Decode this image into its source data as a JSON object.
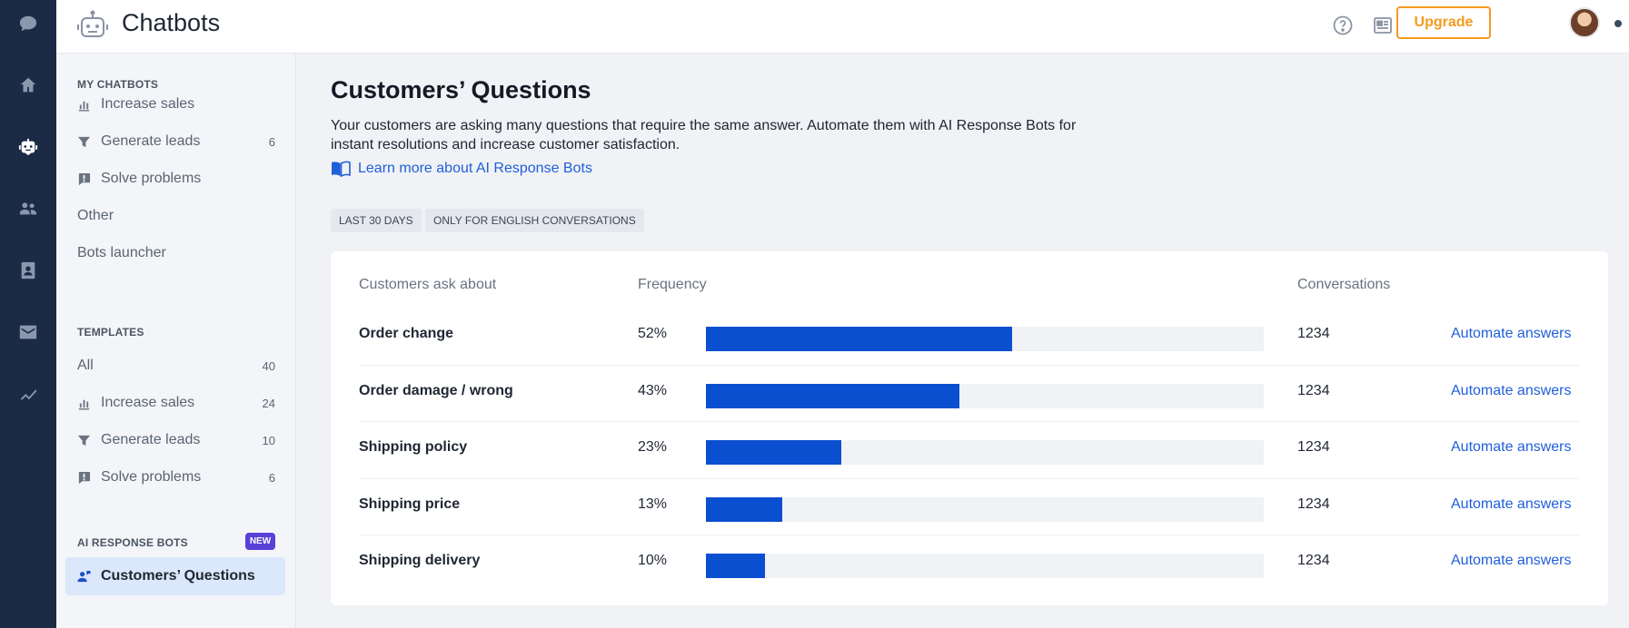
{
  "app": {
    "title": "Chatbots"
  },
  "rail": {
    "icons": [
      "chat-icon",
      "home-icon",
      "bot-icon",
      "people-icon",
      "contacts-icon",
      "mail-icon",
      "analytics-icon"
    ],
    "active": "bot-icon"
  },
  "topbar": {
    "icons": [
      "help-icon",
      "news-icon",
      "loading-icon"
    ],
    "upgrade_label": "Upgrade"
  },
  "sidebar": {
    "my_chatbots": {
      "title": "MY CHATBOTS",
      "items": [
        {
          "label": "Increase sales",
          "icon": "sales-icon",
          "count": ""
        },
        {
          "label": "Generate leads",
          "icon": "funnel-icon",
          "count": "6"
        },
        {
          "label": "Solve problems",
          "icon": "alert-chat-icon",
          "count": ""
        },
        {
          "label": "Other",
          "icon": "",
          "count": ""
        },
        {
          "label": "Bots launcher",
          "icon": "",
          "count": ""
        }
      ]
    },
    "templates": {
      "title": "TEMPLATES",
      "items": [
        {
          "label": "All",
          "icon": "",
          "count": "40"
        },
        {
          "label": "Increase sales",
          "icon": "sales-icon",
          "count": "24"
        },
        {
          "label": "Generate leads",
          "icon": "funnel-icon",
          "count": "10"
        },
        {
          "label": "Solve problems",
          "icon": "alert-chat-icon",
          "count": "6"
        }
      ]
    },
    "ai_bots": {
      "title": "AI RESPONSE BOTS",
      "badge": "NEW",
      "items": [
        {
          "label": "Customers’ Questions",
          "icon": "user-chat-icon",
          "selected": true
        }
      ]
    }
  },
  "main": {
    "title": "Customers’ Questions",
    "description": "Your customers are asking many questions that require the same answer. Automate them with AI Response Bots for instant resolutions and increase customer satisfaction.",
    "learn_link": "Learn more about AI Response Bots",
    "filters": [
      "LAST 30 DAYS",
      "ONLY FOR ENGLISH CONVERSATIONS"
    ],
    "table": {
      "headers": {
        "topic": "Customers ask about",
        "frequency": "Frequency",
        "conversations": "Conversations"
      },
      "rows": [
        {
          "topic": "Order change",
          "pct_label": "52%",
          "frequency": 0.52,
          "conversations": "1234",
          "action": "Automate answers"
        },
        {
          "topic": "Order damage / wrong",
          "pct_label": "43%",
          "frequency": 0.43,
          "conversations": "1234",
          "action": "Automate answers"
        },
        {
          "topic": "Shipping policy",
          "pct_label": "23%",
          "frequency": 0.23,
          "conversations": "1234",
          "action": "Automate answers"
        },
        {
          "topic": "Shipping price",
          "pct_label": "13%",
          "frequency": 0.13,
          "conversations": "1234",
          "action": "Automate answers"
        },
        {
          "topic": "Shipping delivery",
          "pct_label": "10%",
          "frequency": 0.1,
          "conversations": "1234",
          "action": "Automate answers"
        }
      ]
    }
  },
  "colors": {
    "rail_bg": "#1b2b45",
    "accent": "#0b4fd1",
    "link": "#1f5fd9",
    "upgrade": "#f59a1f",
    "new_badge": "#5b3fd9"
  }
}
